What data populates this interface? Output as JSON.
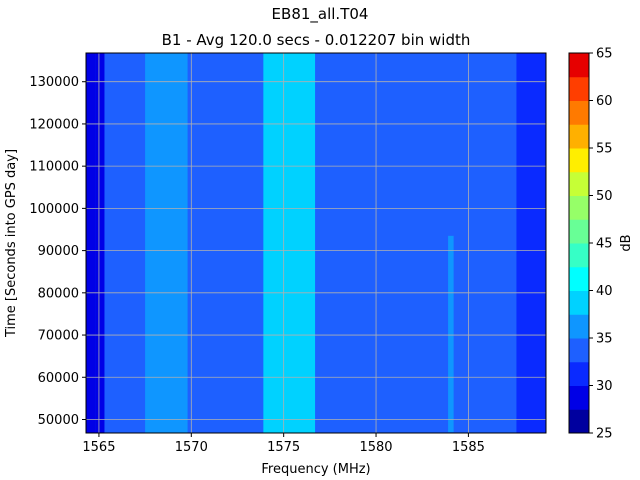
{
  "chart_data": {
    "type": "heatmap",
    "title": "EB81_all.T04",
    "subtitle": "B1 - Avg 120.0 secs - 0.012207 bin width",
    "xlabel": "Frequency (MHz)",
    "ylabel": "Time [Seconds into GPS day]",
    "xlim": [
      1564.3,
      1589.2
    ],
    "ylim": [
      46800,
      136800
    ],
    "x_ticks": [
      1565,
      1570,
      1575,
      1580,
      1585
    ],
    "y_ticks": [
      50000,
      60000,
      70000,
      80000,
      90000,
      100000,
      110000,
      120000,
      130000
    ],
    "grid": true,
    "colorbar": {
      "label": "dB",
      "levels": [
        25,
        27.5,
        30,
        32.5,
        35,
        37.5,
        40,
        42.5,
        45,
        47.5,
        50,
        52.5,
        55,
        57.5,
        60,
        62.5,
        65
      ],
      "ticks": [
        25,
        30,
        35,
        40,
        45,
        50,
        55,
        60,
        65
      ],
      "colors": [
        "#00009f",
        "#0000e6",
        "#0a2aff",
        "#1e60ff",
        "#0f96ff",
        "#00d2ff",
        "#00ffff",
        "#36ffc6",
        "#68ff96",
        "#96ff68",
        "#c6ff36",
        "#ffee00",
        "#ffb000",
        "#ff7a00",
        "#ff3e00",
        "#e60000",
        "#9f0000"
      ]
    },
    "bands": [
      {
        "name": "background",
        "x0": 1564.3,
        "x1": 1589.2,
        "value": 31
      },
      {
        "name": "low edge",
        "x0": 1564.3,
        "x1": 1564.8,
        "value": 29
      },
      {
        "name": "low stripe",
        "x0": 1564.8,
        "x1": 1565.3,
        "value": 29.5
      },
      {
        "name": "elevated band",
        "x0": 1565.3,
        "x1": 1587.6,
        "value": 33.5
      },
      {
        "name": "B1 sidelobe",
        "x0": 1567.5,
        "x1": 1569.8,
        "value": 35.5
      },
      {
        "name": "B1 main lobe",
        "x0": 1573.9,
        "x1": 1576.7,
        "value": 37.5
      },
      {
        "name": "B1 peak",
        "x0": 1574.6,
        "x1": 1576.0,
        "value": 39.5
      },
      {
        "name": "narrowband line",
        "x0": 1583.9,
        "x1": 1584.2,
        "value": 36,
        "t0": 47000,
        "t1": 93500
      }
    ]
  }
}
